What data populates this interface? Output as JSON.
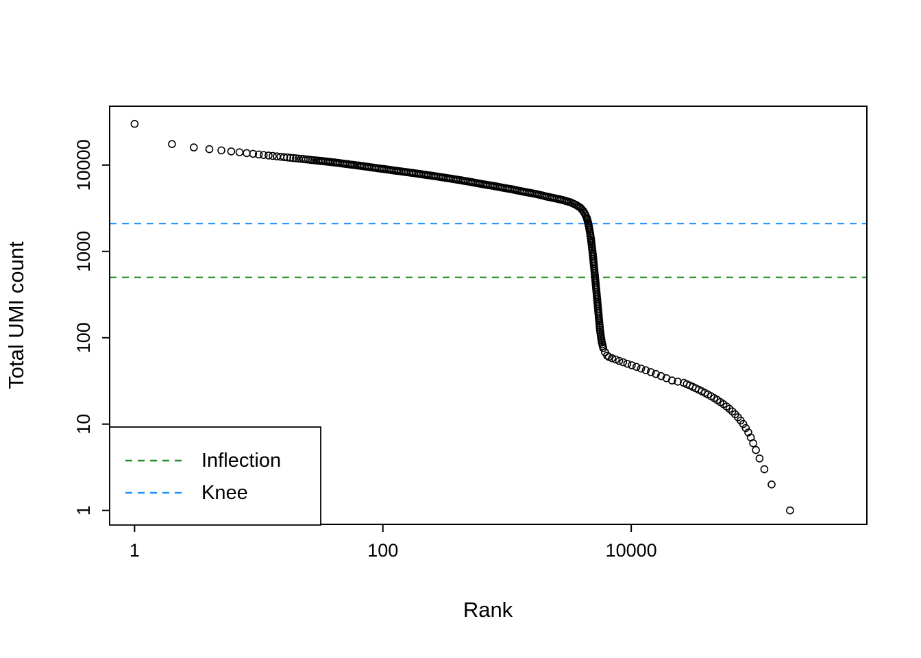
{
  "chart_data": {
    "type": "scatter",
    "title": "",
    "xlabel": "Rank",
    "ylabel": "Total UMI count",
    "xscale": "log",
    "yscale": "log",
    "xlim": [
      0.63,
      790000
    ],
    "ylim": [
      0.69,
      48000
    ],
    "x_ticks": [
      1,
      100,
      10000
    ],
    "y_ticks": [
      1,
      10,
      100,
      1000,
      10000
    ],
    "grid": false,
    "legend_position": "bottom-left",
    "marker": {
      "shape": "open-circle",
      "color": "#000000"
    },
    "reference_lines": [
      {
        "name": "inflection",
        "label": "Inflection",
        "y": 500,
        "color": "#228B22",
        "linestyle": "dashed"
      },
      {
        "name": "knee",
        "label": "Knee",
        "y": 2100,
        "color": "#1E90FF",
        "linestyle": "dashed"
      }
    ],
    "series": [
      {
        "name": "barcode-umi-counts",
        "points": [
          [
            1,
            30000
          ],
          [
            2,
            17500
          ],
          [
            3,
            16000
          ],
          [
            4,
            15300
          ],
          [
            5,
            14800
          ],
          [
            6,
            14400
          ],
          [
            7,
            14050
          ],
          [
            8,
            13750
          ],
          [
            9,
            13500
          ],
          [
            10,
            13250
          ],
          [
            12,
            12900
          ],
          [
            14,
            12600
          ],
          [
            16,
            12350
          ],
          [
            19,
            12050
          ],
          [
            22,
            11800
          ],
          [
            26,
            11500
          ],
          [
            30,
            11250
          ],
          [
            35,
            11000
          ],
          [
            41,
            10700
          ],
          [
            48,
            10400
          ],
          [
            56,
            10100
          ],
          [
            66,
            9800
          ],
          [
            77,
            9500
          ],
          [
            90,
            9200
          ],
          [
            105,
            8950
          ],
          [
            123,
            8650
          ],
          [
            144,
            8400
          ],
          [
            168,
            8150
          ],
          [
            196,
            7900
          ],
          [
            229,
            7650
          ],
          [
            268,
            7400
          ],
          [
            313,
            7150
          ],
          [
            366,
            6900
          ],
          [
            428,
            6650
          ],
          [
            500,
            6400
          ],
          [
            584,
            6150
          ],
          [
            683,
            5900
          ],
          [
            798,
            5700
          ],
          [
            933,
            5450
          ],
          [
            1090,
            5250
          ],
          [
            1274,
            5000
          ],
          [
            1489,
            4800
          ],
          [
            1740,
            4600
          ],
          [
            2034,
            4350
          ],
          [
            2377,
            4150
          ],
          [
            2779,
            3950
          ],
          [
            3248,
            3700
          ],
          [
            3600,
            3450
          ],
          [
            3900,
            3200
          ],
          [
            4100,
            2950
          ],
          [
            4250,
            2700
          ],
          [
            4380,
            2450
          ],
          [
            4480,
            2200
          ],
          [
            4560,
            1950
          ],
          [
            4640,
            1700
          ],
          [
            4720,
            1450
          ],
          [
            4800,
            1200
          ],
          [
            4880,
            980
          ],
          [
            4960,
            780
          ],
          [
            5040,
            620
          ],
          [
            5120,
            490
          ],
          [
            5200,
            390
          ],
          [
            5280,
            310
          ],
          [
            5360,
            245
          ],
          [
            5440,
            195
          ],
          [
            5520,
            155
          ],
          [
            5600,
            125
          ],
          [
            5700,
            103
          ],
          [
            5800,
            88
          ],
          [
            5950,
            76
          ],
          [
            6150,
            68
          ],
          [
            6400,
            62
          ],
          [
            6600,
            60
          ],
          [
            7000,
            58
          ],
          [
            7500,
            56
          ],
          [
            8000,
            54
          ],
          [
            8600,
            52
          ],
          [
            9300,
            50
          ],
          [
            10100,
            48
          ],
          [
            11000,
            46
          ],
          [
            12000,
            44
          ],
          [
            13100,
            42
          ],
          [
            14400,
            40
          ],
          [
            15800,
            38
          ],
          [
            17400,
            36
          ],
          [
            19200,
            34
          ],
          [
            21300,
            32
          ],
          [
            23700,
            31
          ],
          [
            26500,
            30
          ],
          [
            28000,
            29
          ],
          [
            29600,
            28
          ],
          [
            31300,
            27
          ],
          [
            33100,
            26
          ],
          [
            35000,
            25
          ],
          [
            37000,
            24
          ],
          [
            39200,
            23
          ],
          [
            41500,
            22
          ],
          [
            44000,
            21
          ],
          [
            46600,
            20
          ],
          [
            49300,
            19
          ],
          [
            52200,
            18
          ],
          [
            55300,
            17
          ],
          [
            58500,
            16
          ],
          [
            61800,
            15
          ],
          [
            65200,
            14
          ],
          [
            68700,
            13
          ],
          [
            72300,
            12
          ],
          [
            76000,
            11
          ],
          [
            79800,
            10
          ],
          [
            83700,
            9
          ],
          [
            87700,
            8
          ],
          [
            91800,
            7
          ],
          [
            96000,
            6
          ],
          [
            101000,
            5
          ],
          [
            108000,
            4
          ],
          [
            118000,
            3
          ],
          [
            135000,
            2
          ],
          [
            190000,
            1
          ]
        ]
      }
    ]
  }
}
